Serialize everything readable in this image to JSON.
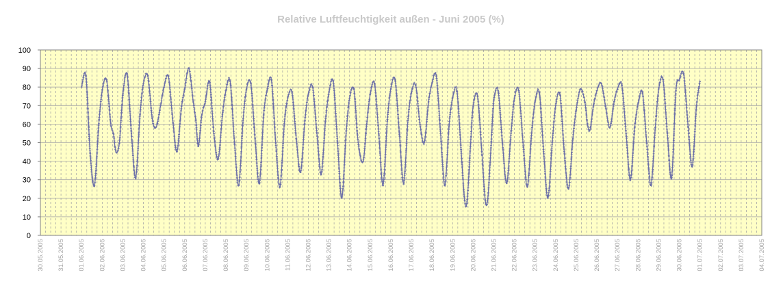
{
  "chart_data": {
    "type": "line",
    "title": "Relative Luftfeuchtigkeit außen - Juni 2005 (%)",
    "xlabel": "",
    "ylabel": "",
    "ylim": [
      0,
      100
    ],
    "yticks": [
      0,
      10,
      20,
      30,
      40,
      50,
      60,
      70,
      80,
      90,
      100
    ],
    "x_tick_labels": [
      "30.05.2005",
      "31.05.2005",
      "01.06.2005",
      "02.06.2005",
      "03.06.2005",
      "04.06.2005",
      "05.06.2005",
      "06.06.2005",
      "07.06.2005",
      "08.06.2005",
      "09.06.2005",
      "10.06.2005",
      "11.06.2005",
      "12.06.2005",
      "13.06.2005",
      "14.06.2005",
      "15.06.2005",
      "16.06.2005",
      "17.06.2005",
      "18.06.2005",
      "19.06.2005",
      "20.06.2005",
      "21.06.2005",
      "22.06.2005",
      "23.06.2005",
      "24.06.2005",
      "25.06.2005",
      "26.06.2005",
      "27.06.2005",
      "28.06.2005",
      "29.06.2005",
      "30.06.2005",
      "01.07.2005",
      "02.07.2005",
      "03.07.2005",
      "04.07.2005"
    ],
    "grid": true,
    "plot_background": "#ffffc6",
    "gridline_color": "#a6a6a6",
    "series_color": "#6b6fa8",
    "series": [
      {
        "points": [
          [
            "01.06.2005 00:00",
            80
          ],
          [
            "01.06.2005 05:00",
            86
          ],
          [
            "01.06.2005 10:00",
            44
          ],
          [
            "01.06.2005 15:00",
            27
          ],
          [
            "01.06.2005 20:00",
            60
          ],
          [
            "02.06.2005 00:00",
            78
          ],
          [
            "02.06.2005 05:00",
            84
          ],
          [
            "02.06.2005 10:00",
            60
          ],
          [
            "02.06.2005 13:00",
            55
          ],
          [
            "02.06.2005 16:00",
            45
          ],
          [
            "02.06.2005 20:00",
            50
          ],
          [
            "03.06.2005 00:00",
            76
          ],
          [
            "03.06.2005 05:00",
            87
          ],
          [
            "03.06.2005 10:00",
            55
          ],
          [
            "03.06.2005 15:00",
            31
          ],
          [
            "03.06.2005 20:00",
            65
          ],
          [
            "04.06.2005 00:00",
            82
          ],
          [
            "04.06.2005 05:00",
            86
          ],
          [
            "04.06.2005 10:00",
            64
          ],
          [
            "04.06.2005 13:00",
            58
          ],
          [
            "04.06.2005 16:00",
            60
          ],
          [
            "04.06.2005 20:00",
            70
          ],
          [
            "05.06.2005 00:00",
            80
          ],
          [
            "05.06.2005 05:00",
            86
          ],
          [
            "05.06.2005 10:00",
            63
          ],
          [
            "05.06.2005 15:00",
            45
          ],
          [
            "05.06.2005 20:00",
            68
          ],
          [
            "06.06.2005 00:00",
            79
          ],
          [
            "06.06.2005 05:00",
            90
          ],
          [
            "06.06.2005 10:00",
            72
          ],
          [
            "06.06.2005 13:00",
            62
          ],
          [
            "06.06.2005 16:00",
            48
          ],
          [
            "06.06.2005 20:00",
            65
          ],
          [
            "07.06.2005 00:00",
            72
          ],
          [
            "07.06.2005 05:00",
            83
          ],
          [
            "07.06.2005 10:00",
            55
          ],
          [
            "07.06.2005 15:00",
            41
          ],
          [
            "07.06.2005 20:00",
            65
          ],
          [
            "08.06.2005 00:00",
            78
          ],
          [
            "08.06.2005 05:00",
            83
          ],
          [
            "08.06.2005 10:00",
            50
          ],
          [
            "08.06.2005 15:00",
            27
          ],
          [
            "08.06.2005 20:00",
            62
          ],
          [
            "09.06.2005 00:00",
            79
          ],
          [
            "09.06.2005 05:00",
            82
          ],
          [
            "09.06.2005 10:00",
            52
          ],
          [
            "09.06.2005 15:00",
            28
          ],
          [
            "09.06.2005 20:00",
            65
          ],
          [
            "10.06.2005 00:00",
            78
          ],
          [
            "10.06.2005 05:00",
            84
          ],
          [
            "10.06.2005 10:00",
            50
          ],
          [
            "10.06.2005 15:00",
            26
          ],
          [
            "10.06.2005 20:00",
            60
          ],
          [
            "11.06.2005 00:00",
            74
          ],
          [
            "11.06.2005 05:00",
            77
          ],
          [
            "11.06.2005 10:00",
            52
          ],
          [
            "11.06.2005 15:00",
            34
          ],
          [
            "11.06.2005 20:00",
            62
          ],
          [
            "12.06.2005 00:00",
            76
          ],
          [
            "12.06.2005 05:00",
            80
          ],
          [
            "12.06.2005 10:00",
            55
          ],
          [
            "12.06.2005 15:00",
            33
          ],
          [
            "12.06.2005 20:00",
            62
          ],
          [
            "13.06.2005 00:00",
            77
          ],
          [
            "13.06.2005 05:00",
            83
          ],
          [
            "13.06.2005 10:00",
            50
          ],
          [
            "13.06.2005 15:00",
            20
          ],
          [
            "13.06.2005 20:00",
            55
          ],
          [
            "14.06.2005 00:00",
            74
          ],
          [
            "14.06.2005 05:00",
            79
          ],
          [
            "14.06.2005 09:00",
            55
          ],
          [
            "14.06.2005 12:00",
            44
          ],
          [
            "14.06.2005 16:00",
            40
          ],
          [
            "14.06.2005 20:00",
            60
          ],
          [
            "15.06.2005 00:00",
            76
          ],
          [
            "15.06.2005 05:00",
            82
          ],
          [
            "15.06.2005 10:00",
            55
          ],
          [
            "15.06.2005 15:00",
            27
          ],
          [
            "15.06.2005 20:00",
            62
          ],
          [
            "16.06.2005 00:00",
            79
          ],
          [
            "16.06.2005 05:00",
            84
          ],
          [
            "16.06.2005 10:00",
            55
          ],
          [
            "16.06.2005 15:00",
            28
          ],
          [
            "16.06.2005 20:00",
            62
          ],
          [
            "17.06.2005 00:00",
            77
          ],
          [
            "17.06.2005 05:00",
            81
          ],
          [
            "17.06.2005 10:00",
            60
          ],
          [
            "17.06.2005 15:00",
            50
          ],
          [
            "17.06.2005 20:00",
            72
          ],
          [
            "18.06.2005 00:00",
            82
          ],
          [
            "18.06.2005 05:00",
            86
          ],
          [
            "18.06.2005 10:00",
            55
          ],
          [
            "18.06.2005 15:00",
            27
          ],
          [
            "18.06.2005 20:00",
            60
          ],
          [
            "19.06.2005 00:00",
            74
          ],
          [
            "19.06.2005 05:00",
            78
          ],
          [
            "19.06.2005 10:00",
            45
          ],
          [
            "19.06.2005 14:00",
            19
          ],
          [
            "19.06.2005 17:00",
            19
          ],
          [
            "19.06.2005 21:00",
            50
          ],
          [
            "20.06.2005 00:00",
            70
          ],
          [
            "20.06.2005 05:00",
            75
          ],
          [
            "20.06.2005 10:00",
            45
          ],
          [
            "20.06.2005 14:00",
            19
          ],
          [
            "20.06.2005 17:00",
            20
          ],
          [
            "20.06.2005 21:00",
            50
          ],
          [
            "21.06.2005 00:00",
            73
          ],
          [
            "21.06.2005 05:00",
            78
          ],
          [
            "21.06.2005 10:00",
            50
          ],
          [
            "21.06.2005 15:00",
            28
          ],
          [
            "21.06.2005 20:00",
            55
          ],
          [
            "22.06.2005 00:00",
            74
          ],
          [
            "22.06.2005 05:00",
            78
          ],
          [
            "22.06.2005 10:00",
            50
          ],
          [
            "22.06.2005 15:00",
            26
          ],
          [
            "22.06.2005 20:00",
            55
          ],
          [
            "23.06.2005 00:00",
            72
          ],
          [
            "23.06.2005 05:00",
            77
          ],
          [
            "23.06.2005 10:00",
            45
          ],
          [
            "23.06.2005 15:00",
            20
          ],
          [
            "23.06.2005 20:00",
            50
          ],
          [
            "24.06.2005 00:00",
            70
          ],
          [
            "24.06.2005 05:00",
            76
          ],
          [
            "24.06.2005 10:00",
            45
          ],
          [
            "24.06.2005 15:00",
            25
          ],
          [
            "24.06.2005 20:00",
            52
          ],
          [
            "25.06.2005 00:00",
            68
          ],
          [
            "25.06.2005 05:00",
            79
          ],
          [
            "25.06.2005 10:00",
            72
          ],
          [
            "25.06.2005 13:00",
            60
          ],
          [
            "25.06.2005 16:00",
            57
          ],
          [
            "25.06.2005 20:00",
            70
          ],
          [
            "26.06.2005 00:00",
            78
          ],
          [
            "26.06.2005 05:00",
            82
          ],
          [
            "26.06.2005 10:00",
            70
          ],
          [
            "26.06.2005 15:00",
            58
          ],
          [
            "26.06.2005 20:00",
            72
          ],
          [
            "27.06.2005 00:00",
            79
          ],
          [
            "27.06.2005 05:00",
            81
          ],
          [
            "27.06.2005 10:00",
            55
          ],
          [
            "27.06.2005 15:00",
            30
          ],
          [
            "27.06.2005 20:00",
            58
          ],
          [
            "28.06.2005 00:00",
            71
          ],
          [
            "28.06.2005 05:00",
            77
          ],
          [
            "28.06.2005 10:00",
            50
          ],
          [
            "28.06.2005 15:00",
            27
          ],
          [
            "28.06.2005 20:00",
            58
          ],
          [
            "29.06.2005 00:00",
            79
          ],
          [
            "29.06.2005 05:00",
            84
          ],
          [
            "29.06.2005 10:00",
            55
          ],
          [
            "29.06.2005 15:00",
            31
          ],
          [
            "29.06.2005 20:00",
            78
          ],
          [
            "30.06.2005 00:00",
            84
          ],
          [
            "30.06.2005 05:00",
            87
          ],
          [
            "30.06.2005 10:00",
            60
          ],
          [
            "30.06.2005 15:00",
            37
          ],
          [
            "30.06.2005 20:00",
            70
          ],
          [
            "01.07.2005 00:00",
            83
          ]
        ]
      }
    ]
  }
}
